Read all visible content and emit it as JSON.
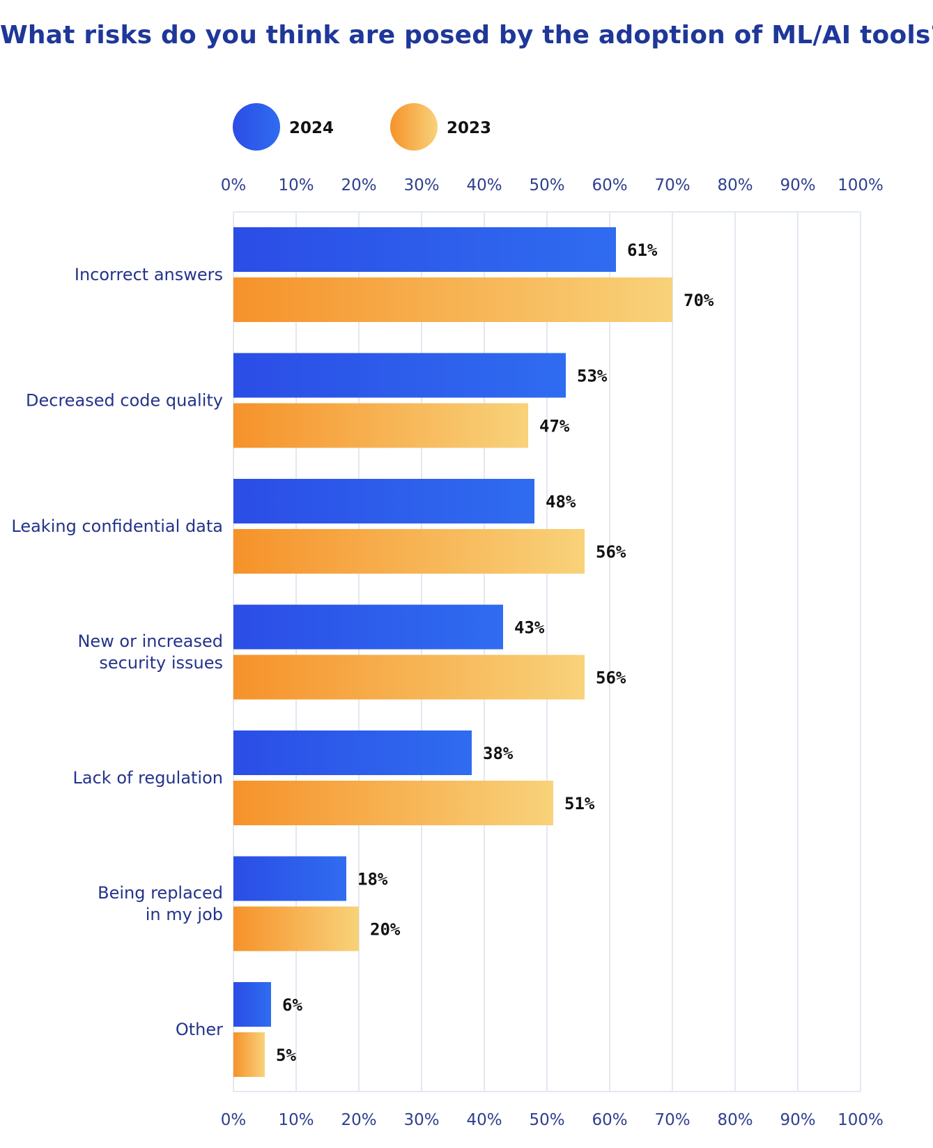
{
  "chart_data": {
    "type": "bar",
    "orientation": "horizontal",
    "title": "What risks do you think are posed by the adoption of ML/AI tools?",
    "categories": [
      "Incorrect answers",
      "Decreased code quality",
      "Leaking confidential data",
      "New or increased security issues",
      "Lack of regulation",
      "Being replaced in my job",
      "Other"
    ],
    "category_lines": [
      [
        "Incorrect answers"
      ],
      [
        "Decreased code quality"
      ],
      [
        "Leaking confidential data"
      ],
      [
        "New or increased",
        "security issues"
      ],
      [
        "Lack of regulation"
      ],
      [
        "Being replaced",
        "in my job"
      ],
      [
        "Other"
      ]
    ],
    "series": [
      {
        "name": "2024",
        "values": [
          61,
          53,
          48,
          43,
          38,
          18,
          6
        ],
        "value_labels": [
          "61%",
          "53%",
          "48%",
          "43%",
          "38%",
          "18%",
          "6%"
        ],
        "color_start": "#2b4de6",
        "color_end": "#2f6cf0"
      },
      {
        "name": "2023",
        "values": [
          70,
          47,
          56,
          56,
          51,
          20,
          5
        ],
        "value_labels": [
          "70%",
          "47%",
          "56%",
          "56%",
          "51%",
          "20%",
          "5%"
        ],
        "color_start": "#f6922a",
        "color_end": "#f8d27a"
      }
    ],
    "xlim": [
      0,
      100
    ],
    "x_ticks": [
      0,
      10,
      20,
      30,
      40,
      50,
      60,
      70,
      80,
      90,
      100
    ],
    "x_tick_labels": [
      "0%",
      "10%",
      "20%",
      "30%",
      "40%",
      "50%",
      "60%",
      "70%",
      "80%",
      "90%",
      "100%"
    ],
    "grid": true,
    "legend_position": "top-left",
    "xlabel": "",
    "ylabel": ""
  },
  "colors": {
    "title": "#1e3799",
    "axis_text": "#2d3f8f",
    "category_text": "#23338a",
    "grid": "#e3e8f1"
  }
}
